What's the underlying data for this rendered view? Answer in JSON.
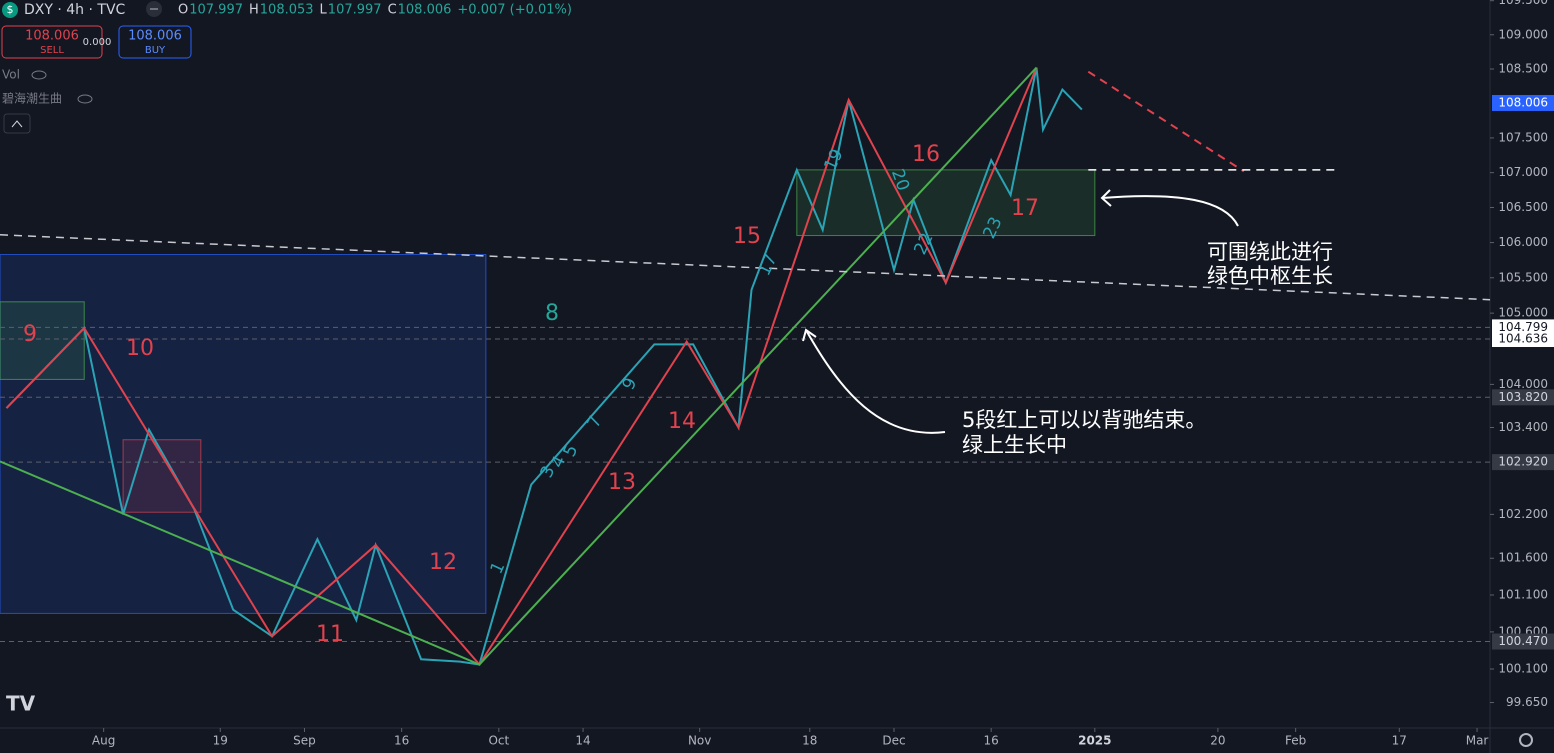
{
  "header": {
    "symbol": "DXY · 4h · TVC",
    "ohlc": [
      {
        "label": "O",
        "value": 107.997
      },
      {
        "label": "H",
        "value": 108.053
      },
      {
        "label": "L",
        "value": 107.997
      },
      {
        "label": "C",
        "value": 108.006
      }
    ],
    "change": "+0.007 (+0.01%)",
    "sell": {
      "price": 108.006,
      "label": "SELL"
    },
    "spread": "0.000",
    "buy": {
      "price": 108.006,
      "label": "BUY"
    },
    "indicators": [
      "Vol",
      "碧海潮生曲"
    ]
  },
  "chart_data": {
    "type": "line",
    "log_scale": true,
    "grid": false,
    "xlim": [
      "2024-07-16",
      "2025-03-03"
    ],
    "ylim": [
      99.31,
      109.51
    ],
    "xticks": [
      {
        "value": "2024-08-01",
        "label": "Aug"
      },
      {
        "value": "2024-08-19",
        "label": "19"
      },
      {
        "value": "2024-09-01",
        "label": "Sep"
      },
      {
        "value": "2024-09-16",
        "label": "16"
      },
      {
        "value": "2024-10-01",
        "label": "Oct"
      },
      {
        "value": "2024-10-14",
        "label": "14"
      },
      {
        "value": "2024-11-01",
        "label": "Nov"
      },
      {
        "value": "2024-11-18",
        "label": "18"
      },
      {
        "value": "2024-12-01",
        "label": "Dec"
      },
      {
        "value": "2024-12-16",
        "label": "16"
      },
      {
        "value": "2025-01-01",
        "label": "2025"
      },
      {
        "value": "2025-01-20",
        "label": "20"
      },
      {
        "value": "2025-02-01",
        "label": "Feb"
      },
      {
        "value": "2025-02-17",
        "label": "17"
      },
      {
        "value": "2025-03-01",
        "label": "Mar"
      }
    ],
    "yticks": [
      {
        "value": 99.65,
        "label": "99.650"
      },
      {
        "value": 100.1,
        "label": "100.100"
      },
      {
        "value": 100.6,
        "label": "100.600"
      },
      {
        "value": 101.1,
        "label": "101.100"
      },
      {
        "value": 101.6,
        "label": "101.600"
      },
      {
        "value": 102.2,
        "label": "102.200"
      },
      {
        "value": 103.4,
        "label": "103.400"
      },
      {
        "value": 104,
        "label": "104.000"
      },
      {
        "value": 105,
        "label": "105.000"
      },
      {
        "value": 105.5,
        "label": "105.500"
      },
      {
        "value": 106,
        "label": "106.000"
      },
      {
        "value": 106.5,
        "label": "106.500"
      },
      {
        "value": 107,
        "label": "107.000"
      },
      {
        "value": 107.5,
        "label": "107.500"
      },
      {
        "value": 108.5,
        "label": "108.500"
      },
      {
        "value": 109,
        "label": "109.000"
      },
      {
        "value": 109.5,
        "label": "109.500"
      }
    ],
    "zones": [
      {
        "x": [
          "2024-07-16",
          "2024-09-29"
        ],
        "y": [
          100.85,
          105.83
        ],
        "color": "#2962ff"
      },
      {
        "x": [
          "2024-07-16",
          "2024-07-29"
        ],
        "y": [
          104.07,
          105.16
        ],
        "color": "#4caf50"
      },
      {
        "x": [
          "2024-08-04",
          "2024-08-16"
        ],
        "y": [
          102.23,
          103.23
        ],
        "color": "#e0424e"
      },
      {
        "x": [
          "2024-11-16",
          "2025-01-01"
        ],
        "y": [
          106.1,
          107.04
        ],
        "color": "#4caf50"
      }
    ],
    "series": [
      {
        "color": "#2aa3b5",
        "width": 2,
        "x": [
          "2024-07-17",
          "2024-07-29",
          "2024-08-04",
          "2024-08-08",
          "2024-08-15",
          "2024-08-21",
          "2024-08-27",
          "2024-09-03",
          "2024-09-09",
          "2024-09-12",
          "2024-09-19",
          "2024-09-25",
          "2024-09-28",
          "2024-10-06",
          "2024-10-25",
          "2024-10-31",
          "2024-11-07",
          "2024-11-09",
          "2024-11-16",
          "2024-11-20",
          "2024-11-24",
          "2024-12-01",
          "2024-12-04",
          "2024-12-09",
          "2024-12-16",
          "2024-12-19",
          "2024-12-23",
          "2024-12-24",
          "2024-12-27",
          "2024-12-30"
        ],
        "values": [
          103.67,
          104.79,
          102.2,
          103.37,
          102.27,
          100.9,
          100.54,
          101.86,
          100.76,
          101.78,
          100.23,
          100.2,
          100.16,
          102.61,
          104.56,
          104.56,
          103.4,
          105.33,
          107.04,
          106.18,
          108.05,
          105.61,
          106.61,
          105.43,
          107.18,
          106.68,
          108.52,
          107.62,
          108.2,
          107.91
        ]
      },
      {
        "color": "#e0424e",
        "width": 2,
        "x": [
          "2024-07-17",
          "2024-07-29",
          "2024-08-27",
          "2024-09-12",
          "2024-09-28",
          "2024-10-30",
          "2024-11-07",
          "2024-11-24",
          "2024-12-09",
          "2024-12-23"
        ],
        "values": [
          103.67,
          104.79,
          100.54,
          101.78,
          100.16,
          104.6,
          103.4,
          108.05,
          105.43,
          108.52
        ]
      },
      {
        "color": "#4caf50",
        "width": 2,
        "x": [
          "2024-07-16",
          "2024-09-28",
          "2024-12-23"
        ],
        "values": [
          102.93,
          100.16,
          108.52
        ]
      },
      {
        "color": "#e0424e",
        "width": 2,
        "dash": true,
        "x": [
          "2024-12-31",
          "2025-01-24"
        ],
        "values": [
          108.46,
          107.02
        ]
      },
      {
        "color": "#c8cad0",
        "width": 1.5,
        "dash": true,
        "x": [
          "2024-07-16",
          "2025-03-03"
        ],
        "values": [
          106.11,
          105.19
        ]
      },
      {
        "color": "#ffffff",
        "width": 1.5,
        "dash": true,
        "x": [
          "2024-12-31",
          "2025-02-07"
        ],
        "values": [
          107.04,
          107.04
        ]
      }
    ],
    "current_price": 108.006,
    "levels": [
      104.799,
      104.636,
      {
        "value": 103.82,
        "label": "103.820"
      },
      {
        "value": 102.92,
        "label": "102.920"
      },
      {
        "value": 100.47,
        "label": "100.470"
      }
    ],
    "annotations": [
      "9",
      "10",
      "11",
      "12",
      "13",
      "14",
      "15",
      "16",
      "17",
      "8"
    ],
    "wave_labels": [
      "1",
      "3",
      "4",
      "5",
      "7",
      "9",
      "17",
      "19",
      "20",
      "22",
      "23"
    ],
    "notes": [
      [
        "可围绕此进行",
        "绿色中枢生长"
      ],
      [
        "5段红上可以以背驰结束。",
        "绿上生长中"
      ]
    ]
  }
}
